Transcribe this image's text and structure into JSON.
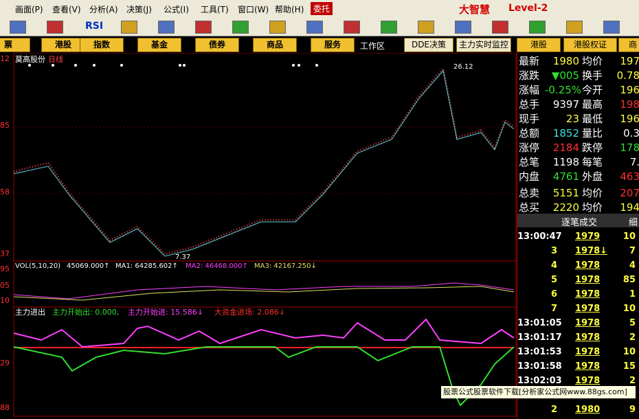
{
  "menu": [
    "画面(P)",
    "查看(V)",
    "分析(A)",
    "决策(J)",
    "公式(I)",
    "工具(T)",
    "窗口(W)",
    "帮助(H)"
  ],
  "trade": "委托",
  "brand": "大智慧",
  "level": "Level-2",
  "toolbar_text": "RSI",
  "tabs": [
    "票",
    "港股",
    "指数",
    "基金",
    "债券",
    "商品",
    "服务"
  ],
  "workspace": "工作区",
  "tabs2": [
    "DDE决策",
    "主力实时监控",
    "港股",
    "港股权证",
    "商"
  ],
  "chart": {
    "stock": "莫高股份",
    "period": "日线",
    "price_labels": [
      "12",
      "85",
      "58",
      "37"
    ],
    "high": "26.12",
    "low": "7.37",
    "vol": {
      "name": "VOL(5,10,20)",
      "v": "45069.000↑",
      "ma1": "MA1: 64285.602↑",
      "ma2": "MA2: 46468.000↑",
      "ma3": "MA3: 42167.250↓",
      "labels": [
        "95",
        "05",
        "10"
      ]
    },
    "indicator": {
      "name": "主力进出",
      "out": "主力开始出: 0.000,",
      "in": "主力开始进: 15.586↓",
      "big": "大资金进场: 2.086↓",
      "labels": [
        "29",
        "88"
      ]
    }
  },
  "quote": [
    [
      "最新",
      "1980",
      "均价",
      "197"
    ],
    [
      "涨跌",
      "▼005",
      "换手",
      "0.78"
    ],
    [
      "涨幅",
      "-0.25%",
      "今开",
      "196"
    ],
    [
      "总手",
      "9397",
      "最高",
      "198"
    ],
    [
      "现手",
      "23",
      "最低",
      "196"
    ],
    [
      "总额",
      "1852",
      "量比",
      "0.3"
    ],
    [
      "涨停",
      "2184",
      "跌停",
      "178"
    ],
    [
      "总笔",
      "1198",
      "每笔",
      "7."
    ],
    [
      "内盘",
      "4761",
      "外盘",
      "463"
    ],
    [
      "总卖",
      "5151",
      "均价",
      "207"
    ],
    [
      "总买",
      "2220",
      "均价",
      "194"
    ]
  ],
  "ticks": {
    "title": "逐笔成交",
    "extra": "细",
    "rows": [
      [
        "13:00:47",
        "1979",
        "10"
      ],
      [
        "3",
        "1978↓",
        "7"
      ],
      [
        "4",
        "1978",
        "4"
      ],
      [
        "5",
        "1978",
        "85"
      ],
      [
        "6",
        "1978",
        "1"
      ],
      [
        "7",
        "1978",
        "10"
      ],
      [
        "13:01:05",
        "1978",
        "5"
      ],
      [
        "13:01:17",
        "1978",
        "2"
      ],
      [
        "13:01:53",
        "1978",
        "10"
      ],
      [
        "13:01:58",
        "1978",
        "15"
      ],
      [
        "13:02:03",
        "1978",
        "2"
      ],
      [
        "2",
        "1980",
        "9"
      ]
    ]
  },
  "watermark": "股票公式股票软件下载[分析家公式网www.88gs.com]"
}
